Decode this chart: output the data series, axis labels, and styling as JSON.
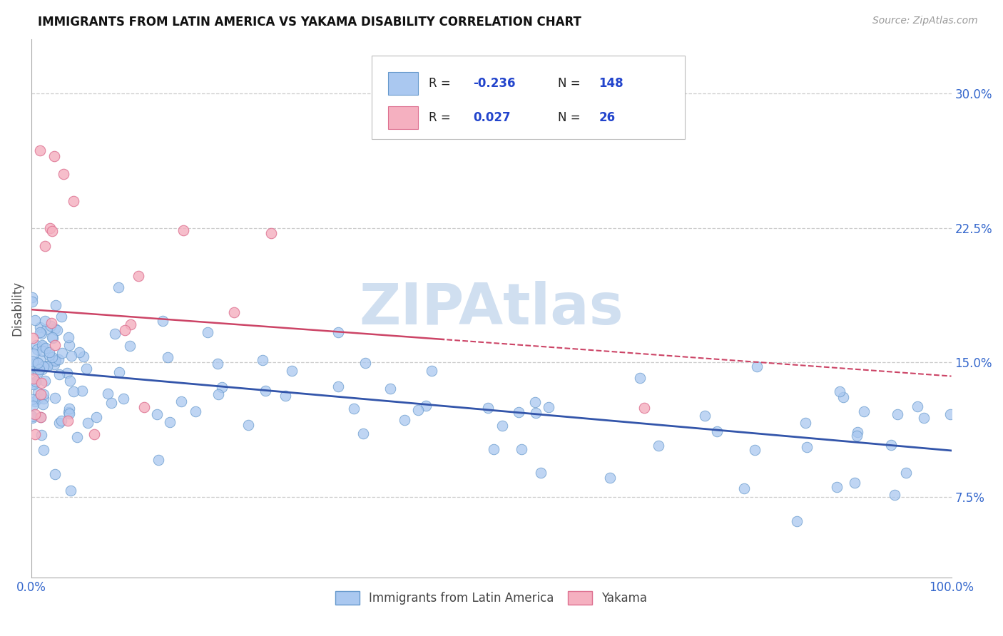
{
  "title": "IMMIGRANTS FROM LATIN AMERICA VS YAKAMA DISABILITY CORRELATION CHART",
  "source_text": "Source: ZipAtlas.com",
  "ylabel": "Disability",
  "xlim": [
    0.0,
    1.0
  ],
  "ylim": [
    0.03,
    0.33
  ],
  "yticks": [
    0.075,
    0.15,
    0.225,
    0.3
  ],
  "ytick_labels": [
    "7.5%",
    "15.0%",
    "22.5%",
    "30.0%"
  ],
  "xtick_labels": [
    "0.0%",
    "100.0%"
  ],
  "series1_color": "#aac8f0",
  "series1_edge": "#6699cc",
  "series2_color": "#f5b0c0",
  "series2_edge": "#dd7090",
  "trendline1_color": "#3355aa",
  "trendline2_color": "#cc4466",
  "watermark": "ZIPAtlas",
  "watermark_color": "#d0dff0",
  "background_color": "#ffffff",
  "title_fontsize": 12,
  "seed": 7,
  "n1": 148,
  "n2": 26
}
